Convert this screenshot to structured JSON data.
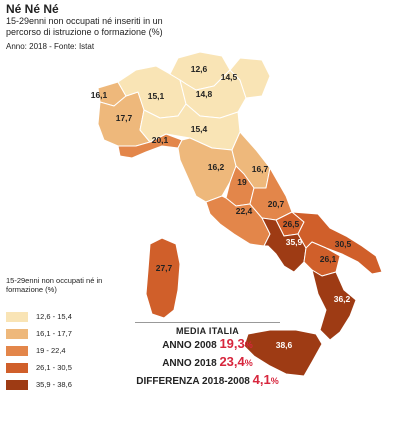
{
  "title": "Né Né Né",
  "subtitle": "15-29enni non occupati né inseriti in un percorso di istruzione o formazione (%)",
  "source": "Anno: 2018 - Fonte: Istat",
  "colors": {
    "c1": "#f9e4b5",
    "c2": "#eeb87b",
    "c3": "#e3864a",
    "c4": "#d05f2a",
    "c5": "#9e3b14",
    "border": "#ffffff",
    "accent": "#d7263d"
  },
  "regions": [
    {
      "name": "Trentino-Alto Adige",
      "value": "12,6",
      "cls": "c1"
    },
    {
      "name": "Friuli-Venezia Giulia",
      "value": "14,5",
      "cls": "c1"
    },
    {
      "name": "Veneto",
      "value": "14,8",
      "cls": "c1"
    },
    {
      "name": "Lombardia",
      "value": "15,1",
      "cls": "c1"
    },
    {
      "name": "Emilia-Romagna",
      "value": "15,4",
      "cls": "c1"
    },
    {
      "name": "Valle d'Aosta",
      "value": "16,1",
      "cls": "c2"
    },
    {
      "name": "Piemonte",
      "value": "17,7",
      "cls": "c2"
    },
    {
      "name": "Liguria",
      "value": "20,1",
      "cls": "c3"
    },
    {
      "name": "Toscana",
      "value": "16,2",
      "cls": "c2"
    },
    {
      "name": "Marche",
      "value": "16,7",
      "cls": "c2"
    },
    {
      "name": "Umbria",
      "value": "19",
      "cls": "c3"
    },
    {
      "name": "Lazio",
      "value": "22,4",
      "cls": "c3"
    },
    {
      "name": "Abruzzo",
      "value": "20,7",
      "cls": "c3"
    },
    {
      "name": "Molise",
      "value": "26,5",
      "cls": "c4"
    },
    {
      "name": "Campania",
      "value": "35,9",
      "cls": "c5"
    },
    {
      "name": "Puglia",
      "value": "30,5",
      "cls": "c4"
    },
    {
      "name": "Basilicata",
      "value": "26,1",
      "cls": "c4"
    },
    {
      "name": "Calabria",
      "value": "36,2",
      "cls": "c5"
    },
    {
      "name": "Sicilia",
      "value": "38,6",
      "cls": "c5"
    },
    {
      "name": "Sardegna",
      "value": "27,7",
      "cls": "c4"
    }
  ],
  "legend": {
    "title": "15-29enni non occupati né in formazione (%)",
    "items": [
      {
        "label": "12,6 - 15,4",
        "cls": "c1"
      },
      {
        "label": "16,1 - 17,7",
        "cls": "c2"
      },
      {
        "label": "19 - 22,4",
        "cls": "c3"
      },
      {
        "label": "26,1 - 30,5",
        "cls": "c4"
      },
      {
        "label": "35,9 - 38,6",
        "cls": "c5"
      }
    ]
  },
  "media": {
    "title": "MEDIA ITALIA",
    "rows": [
      {
        "label": "ANNO 2008",
        "value": "19,3",
        "unit": "%"
      },
      {
        "label": "ANNO 2018",
        "value": "23,4",
        "unit": "%"
      },
      {
        "label": "DIFFERENZA 2018-2008",
        "value": "4,1",
        "unit": "%"
      }
    ]
  }
}
